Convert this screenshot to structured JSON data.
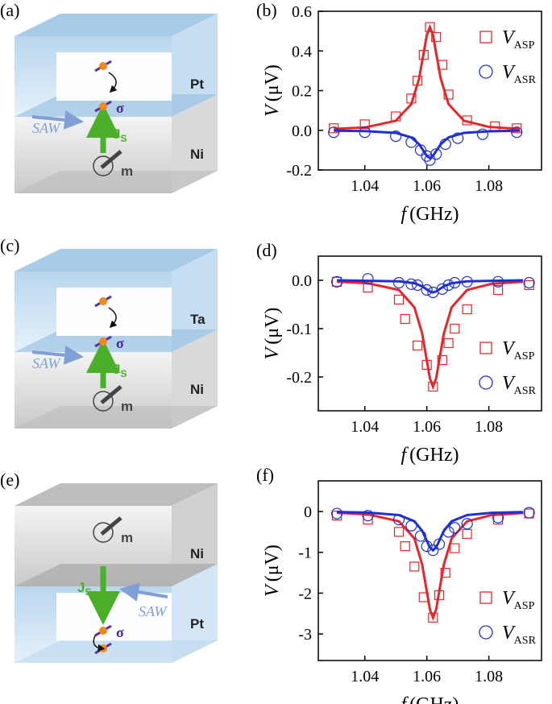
{
  "diagrams": [
    {
      "label": "(a)",
      "top": "Pt",
      "bottom": "Ni",
      "saw": "SAW",
      "js": "J",
      "js_sub": "S",
      "sigma": "σ",
      "m": "m"
    },
    {
      "label": "(c)",
      "top": "Ta",
      "bottom": "Ni",
      "saw": "SAW",
      "js": "J",
      "js_sub": "S",
      "sigma": "σ",
      "m": "m"
    },
    {
      "label": "(e)",
      "top": "Ni",
      "bottom": "Pt",
      "saw": "SAW",
      "js": "J",
      "js_sub": "S",
      "sigma": "σ",
      "m": "m"
    }
  ],
  "chart_data": [
    {
      "type": "scatter",
      "panel": "(b)",
      "xlabel": "f",
      "xlabel_unit": "(GHz)",
      "ylabel": "V",
      "ylabel_unit": "(μV)",
      "xlim": [
        1.025,
        1.097
      ],
      "ylim": [
        -0.2,
        0.6
      ],
      "xticks": [
        1.04,
        1.06,
        1.08
      ],
      "yticks": [
        -0.2,
        {
          "value": 0,
          "label": "0.0"
        },
        0.2,
        0.4,
        0.6
      ],
      "legend": "upper right",
      "series": [
        {
          "name": "V",
          "name_sub": "ASP",
          "color": "#e8262a",
          "marker": "square",
          "x": [
            1.03,
            1.04,
            1.05,
            1.055,
            1.057,
            1.059,
            1.061,
            1.063,
            1.065,
            1.067,
            1.073,
            1.082,
            1.089
          ],
          "values": [
            0.01,
            0.03,
            0.07,
            0.16,
            0.25,
            0.38,
            0.52,
            0.47,
            0.33,
            0.18,
            0.05,
            0.02,
            0.01
          ],
          "fit": {
            "x": [
              1.03,
              1.04,
              1.05,
              1.055,
              1.0575,
              1.059,
              1.06,
              1.061,
              1.062,
              1.063,
              1.0645,
              1.067,
              1.072,
              1.08,
              1.09
            ],
            "values": [
              0.007,
              0.014,
              0.048,
              0.132,
              0.26,
              0.39,
              0.48,
              0.52,
              0.48,
              0.39,
              0.26,
              0.132,
              0.048,
              0.017,
              0.007
            ]
          }
        },
        {
          "name": "V",
          "name_sub": "ASR",
          "color": "#1f2fd6",
          "marker": "circle",
          "x": [
            1.03,
            1.04,
            1.05,
            1.055,
            1.058,
            1.06,
            1.061,
            1.063,
            1.066,
            1.07,
            1.078,
            1.089
          ],
          "values": [
            -0.01,
            -0.01,
            -0.03,
            -0.06,
            -0.1,
            -0.13,
            -0.15,
            -0.12,
            -0.07,
            -0.04,
            -0.02,
            -0.01
          ],
          "fit": {
            "x": [
              1.03,
              1.04,
              1.05,
              1.055,
              1.0575,
              1.059,
              1.06,
              1.061,
              1.062,
              1.063,
              1.0645,
              1.067,
              1.072,
              1.08,
              1.09
            ],
            "values": [
              -0.002,
              -0.004,
              -0.013,
              -0.036,
              -0.07,
              -0.105,
              -0.129,
              -0.14,
              -0.129,
              -0.105,
              -0.07,
              -0.036,
              -0.013,
              -0.005,
              -0.002
            ]
          }
        }
      ]
    },
    {
      "type": "scatter",
      "panel": "(d)",
      "xlabel": "f",
      "xlabel_unit": "(GHz)",
      "ylabel": "V",
      "ylabel_unit": "(μV)",
      "xlim": [
        1.025,
        1.097
      ],
      "ylim": [
        -0.27,
        0.05
      ],
      "xticks": [
        1.04,
        1.06,
        1.08
      ],
      "yticks": [
        -0.2,
        -0.1,
        {
          "value": 0,
          "label": "0.0"
        }
      ],
      "legend": "lower right",
      "series": [
        {
          "name": "V",
          "name_sub": "ASP",
          "color": "#e8262a",
          "marker": "square",
          "x": [
            1.031,
            1.041,
            1.051,
            1.053,
            1.057,
            1.06,
            1.062,
            1.065,
            1.067,
            1.069,
            1.073,
            1.083,
            1.093
          ],
          "values": [
            -0.003,
            -0.015,
            -0.04,
            -0.08,
            -0.135,
            -0.175,
            -0.22,
            -0.165,
            -0.13,
            -0.1,
            -0.06,
            -0.02,
            -0.01
          ],
          "fit": {
            "x": [
              1.031,
              1.041,
              1.051,
              1.056,
              1.0585,
              1.06,
              1.061,
              1.062,
              1.063,
              1.064,
              1.0655,
              1.068,
              1.073,
              1.081,
              1.091
            ],
            "values": [
              -0.003,
              -0.006,
              -0.02,
              -0.056,
              -0.11,
              -0.166,
              -0.203,
              -0.22,
              -0.203,
              -0.166,
              -0.11,
              -0.056,
              -0.02,
              -0.007,
              -0.003
            ]
          }
        },
        {
          "name": "V",
          "name_sub": "ASR",
          "color": "#1f2fd6",
          "marker": "circle",
          "x": [
            1.031,
            1.041,
            1.051,
            1.055,
            1.057,
            1.06,
            1.062,
            1.065,
            1.067,
            1.069,
            1.073,
            1.083,
            1.093
          ],
          "values": [
            -0.003,
            0.003,
            -0.005,
            -0.008,
            -0.01,
            -0.02,
            -0.025,
            -0.018,
            -0.01,
            -0.005,
            -0.003,
            -0.003,
            -0.005
          ],
          "fit": {
            "x": [
              1.031,
              1.041,
              1.051,
              1.056,
              1.0585,
              1.06,
              1.061,
              1.062,
              1.063,
              1.064,
              1.0655,
              1.068,
              1.073,
              1.081,
              1.091
            ],
            "values": [
              0,
              -0.001,
              -0.002,
              -0.006,
              -0.0125,
              -0.019,
              -0.023,
              -0.025,
              -0.023,
              -0.019,
              -0.0125,
              -0.006,
              -0.002,
              -0.001,
              0
            ]
          }
        }
      ]
    },
    {
      "type": "scatter",
      "panel": "(f)",
      "xlabel": "f",
      "xlabel_unit": "(GHz)",
      "ylabel": "V",
      "ylabel_unit": "(μV)",
      "xlim": [
        1.025,
        1.097
      ],
      "ylim": [
        -3.65,
        0.75
      ],
      "xticks": [
        1.04,
        1.06,
        1.08
      ],
      "yticks": [
        -3,
        -2,
        -1,
        0
      ],
      "legend": "lower right",
      "series": [
        {
          "name": "V",
          "name_sub": "ASP",
          "color": "#e8262a",
          "marker": "square",
          "x": [
            1.031,
            1.041,
            1.051,
            1.053,
            1.056,
            1.059,
            1.062,
            1.064,
            1.066,
            1.069,
            1.073,
            1.083,
            1.093
          ],
          "values": [
            -0.1,
            -0.2,
            -0.5,
            -0.85,
            -1.35,
            -2.1,
            -2.6,
            -2.05,
            -1.5,
            -0.9,
            -0.55,
            -0.2,
            -0.05
          ],
          "fit": {
            "x": [
              1.031,
              1.041,
              1.051,
              1.056,
              1.0585,
              1.06,
              1.061,
              1.062,
              1.063,
              1.064,
              1.0655,
              1.068,
              1.073,
              1.081,
              1.091
            ],
            "values": [
              -0.033,
              -0.07,
              -0.24,
              -0.66,
              -1.3,
              -1.96,
              -2.4,
              -2.6,
              -2.4,
              -1.96,
              -1.3,
              -0.66,
              -0.24,
              -0.085,
              -0.037
            ]
          }
        },
        {
          "name": "V",
          "name_sub": "ASR",
          "color": "#1f2fd6",
          "marker": "circle",
          "x": [
            1.031,
            1.041,
            1.051,
            1.055,
            1.058,
            1.06,
            1.062,
            1.064,
            1.067,
            1.069,
            1.073,
            1.083,
            1.093
          ],
          "values": [
            -0.05,
            -0.1,
            -0.2,
            -0.35,
            -0.6,
            -0.85,
            -0.95,
            -0.8,
            -0.5,
            -0.4,
            -0.3,
            -0.15,
            -0.03
          ],
          "fit": {
            "x": [
              1.031,
              1.041,
              1.051,
              1.056,
              1.0585,
              1.06,
              1.061,
              1.062,
              1.063,
              1.064,
              1.0655,
              1.068,
              1.073,
              1.081,
              1.091
            ],
            "values": [
              -0.012,
              -0.026,
              -0.087,
              -0.24,
              -0.475,
              -0.72,
              -0.88,
              -0.95,
              -0.88,
              -0.72,
              -0.475,
              -0.24,
              -0.087,
              -0.031,
              -0.014
            ]
          }
        }
      ]
    }
  ]
}
